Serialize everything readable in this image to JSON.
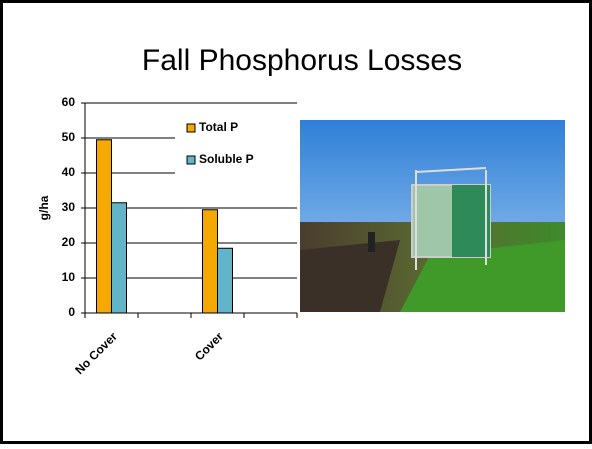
{
  "chart_data": {
    "type": "bar",
    "title": "Fall Phosphorus Losses",
    "y_label": "g/ha",
    "categories": [
      "No Cover",
      null,
      "Cover",
      null
    ],
    "series": [
      {
        "name": "Total P",
        "color": "#f5a800",
        "values": [
          49.5,
          null,
          29.5,
          null
        ]
      },
      {
        "name": "Soluble P",
        "color": "#62b4c8",
        "values": [
          31.5,
          null,
          18.5,
          null
        ]
      }
    ],
    "ylim": [
      0,
      60
    ],
    "yticks": [
      0,
      10,
      20,
      30,
      40,
      50,
      60
    ],
    "grid": true,
    "legend": "upper right"
  }
}
